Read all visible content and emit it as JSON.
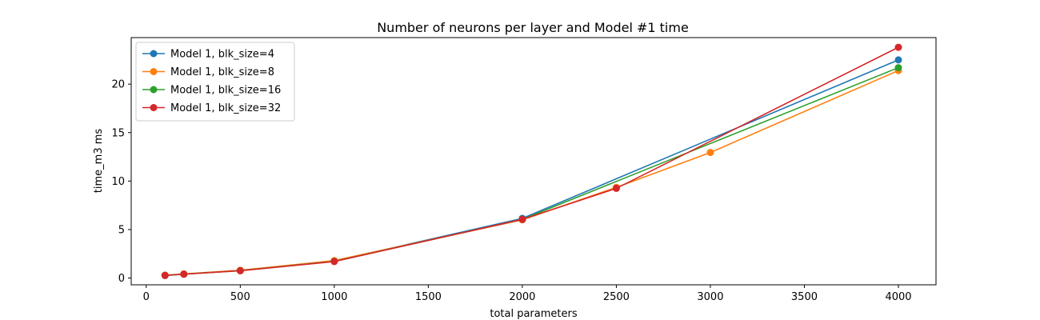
{
  "chart_data": {
    "type": "line",
    "title": "Number of neurons per layer and Model #1 time",
    "xlabel": "total parameters",
    "ylabel": "time_m3 ms",
    "xlim": [
      -80,
      4200
    ],
    "ylim": [
      -0.7,
      24.8
    ],
    "xticks": [
      0,
      500,
      1000,
      1500,
      2000,
      2500,
      3000,
      3500,
      4000
    ],
    "yticks": [
      0,
      5,
      10,
      15,
      20
    ],
    "grid": false,
    "legend_position": "top-left",
    "series": [
      {
        "name": "Model 1, blk_size=4",
        "color": "#1f77b4",
        "points": [
          [
            100,
            0.25
          ],
          [
            200,
            0.4
          ],
          [
            500,
            0.78
          ],
          [
            1000,
            1.75
          ],
          [
            2000,
            6.15
          ],
          [
            4000,
            22.5
          ]
        ]
      },
      {
        "name": "Model 1, blk_size=8",
        "color": "#ff7f0e",
        "points": [
          [
            100,
            0.3
          ],
          [
            200,
            0.42
          ],
          [
            500,
            0.8
          ],
          [
            1000,
            1.8
          ],
          [
            2000,
            6.0
          ],
          [
            2500,
            9.35
          ],
          [
            3000,
            12.95
          ],
          [
            4000,
            21.4
          ]
        ]
      },
      {
        "name": "Model 1, blk_size=16",
        "color": "#2ca02c",
        "points": [
          [
            100,
            0.28
          ],
          [
            200,
            0.4
          ],
          [
            500,
            0.76
          ],
          [
            1000,
            1.72
          ],
          [
            2000,
            6.05
          ],
          [
            4000,
            21.7
          ]
        ]
      },
      {
        "name": "Model 1, blk_size=32",
        "color": "#d62728",
        "points": [
          [
            100,
            0.27
          ],
          [
            200,
            0.4
          ],
          [
            500,
            0.75
          ],
          [
            1000,
            1.7
          ],
          [
            2000,
            6.05
          ],
          [
            2500,
            9.25
          ],
          [
            4000,
            23.8
          ]
        ]
      }
    ]
  }
}
